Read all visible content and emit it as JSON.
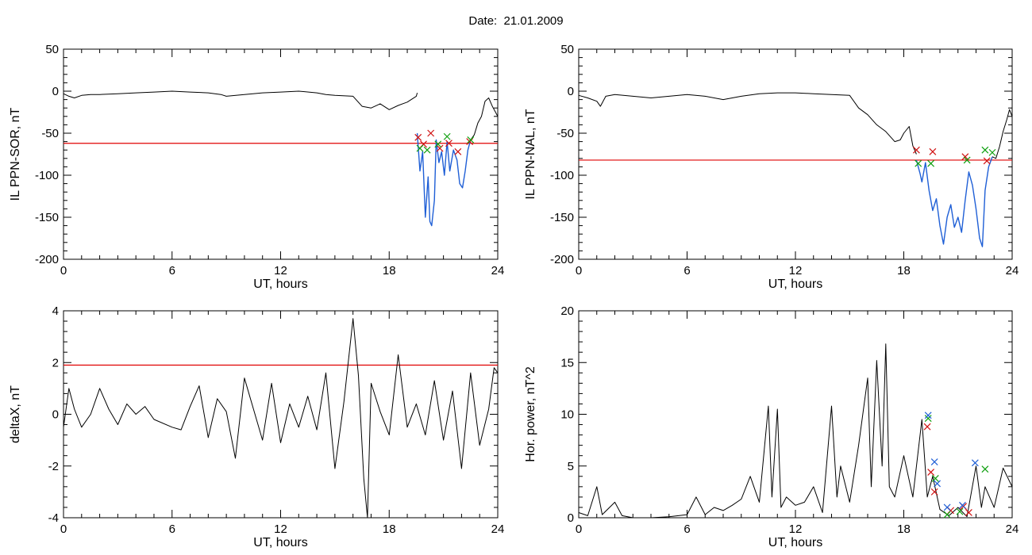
{
  "header": {
    "title": "Date:  21.01.2009"
  },
  "chart_data": [
    {
      "type": "line",
      "xlabel": "UT, hours",
      "ylabel": "IL PPN-SOR, nT",
      "xlim": [
        0,
        24
      ],
      "ylim": [
        -200,
        50
      ],
      "xticks": [
        0,
        6,
        12,
        18,
        24
      ],
      "yticks": [
        -200,
        -150,
        -100,
        -50,
        0,
        50
      ],
      "threshold": -62,
      "colors": {
        "trace": "#000000",
        "highlight": "#1f5fd6",
        "threshold": "#e00000",
        "marker_a": "#d01010",
        "marker_b": "#10a010"
      },
      "series": [
        {
          "values": [
            [
              0,
              -3
            ],
            [
              0.3,
              -6
            ],
            [
              0.6,
              -8
            ],
            [
              1,
              -5
            ],
            [
              1.5,
              -4
            ],
            [
              2,
              -4
            ],
            [
              3,
              -3
            ],
            [
              4,
              -2
            ],
            [
              5,
              -1
            ],
            [
              6,
              0
            ],
            [
              7,
              -1
            ],
            [
              8,
              -2
            ],
            [
              8.7,
              -4
            ],
            [
              9,
              -6
            ],
            [
              10,
              -4
            ],
            [
              11,
              -2
            ],
            [
              12,
              -1
            ],
            [
              13,
              0
            ],
            [
              14,
              -2
            ],
            [
              14.5,
              -4
            ],
            [
              15,
              -5
            ],
            [
              16,
              -6
            ],
            [
              16.5,
              -18
            ],
            [
              17,
              -20
            ],
            [
              17.5,
              -15
            ],
            [
              18,
              -22
            ],
            [
              18.5,
              -17
            ],
            [
              19,
              -13
            ],
            [
              19.5,
              -6
            ],
            [
              19.55,
              -2
            ]
          ]
        },
        {
          "values": [
            [
              19.55,
              -50
            ],
            [
              19.7,
              -95
            ],
            [
              19.85,
              -72
            ],
            [
              20,
              -150
            ],
            [
              20.15,
              -102
            ],
            [
              20.25,
              -155
            ],
            [
              20.35,
              -160
            ],
            [
              20.5,
              -130
            ],
            [
              20.6,
              -58
            ],
            [
              20.75,
              -85
            ],
            [
              20.9,
              -72
            ],
            [
              21.05,
              -100
            ],
            [
              21.2,
              -60
            ],
            [
              21.35,
              -95
            ],
            [
              21.55,
              -70
            ],
            [
              21.75,
              -82
            ],
            [
              21.9,
              -110
            ],
            [
              22.05,
              -115
            ],
            [
              22.2,
              -95
            ],
            [
              22.35,
              -70
            ],
            [
              22.5,
              -58
            ]
          ]
        },
        {
          "values": [
            [
              22.5,
              -58
            ],
            [
              22.7,
              -52
            ],
            [
              22.9,
              -38
            ],
            [
              23.1,
              -30
            ],
            [
              23.3,
              -12
            ],
            [
              23.5,
              -8
            ],
            [
              23.7,
              -18
            ],
            [
              23.85,
              -24
            ],
            [
              24,
              -30
            ]
          ]
        }
      ],
      "markers_a": [
        [
          19.6,
          -55
        ],
        [
          19.9,
          -63
        ],
        [
          20.3,
          -50
        ],
        [
          20.8,
          -68
        ],
        [
          21.3,
          -62
        ],
        [
          21.8,
          -72
        ],
        [
          22.45,
          -60
        ]
      ],
      "markers_b": [
        [
          19.7,
          -68
        ],
        [
          20.1,
          -70
        ],
        [
          20.7,
          -63
        ],
        [
          21.2,
          -54
        ],
        [
          22.5,
          -58
        ]
      ]
    },
    {
      "type": "line",
      "xlabel": "UT, hours",
      "ylabel": "IL PPN-NAL, nT",
      "xlim": [
        0,
        24
      ],
      "ylim": [
        -200,
        50
      ],
      "xticks": [
        0,
        6,
        12,
        18,
        24
      ],
      "yticks": [
        -200,
        -150,
        -100,
        -50,
        0,
        50
      ],
      "threshold": -82,
      "colors": {
        "trace": "#000000",
        "highlight": "#1f5fd6",
        "threshold": "#e00000",
        "marker_a": "#d01010",
        "marker_b": "#10a010"
      },
      "series": [
        {
          "values": [
            [
              0,
              -5
            ],
            [
              0.5,
              -8
            ],
            [
              1,
              -12
            ],
            [
              1.2,
              -18
            ],
            [
              1.5,
              -6
            ],
            [
              2,
              -4
            ],
            [
              3,
              -6
            ],
            [
              4,
              -8
            ],
            [
              5,
              -6
            ],
            [
              6,
              -4
            ],
            [
              7,
              -6
            ],
            [
              8,
              -10
            ],
            [
              9,
              -6
            ],
            [
              10,
              -3
            ],
            [
              11,
              -2
            ],
            [
              12,
              -2
            ],
            [
              13,
              -3
            ],
            [
              14,
              -4
            ],
            [
              15,
              -5
            ],
            [
              15.5,
              -20
            ],
            [
              16,
              -28
            ],
            [
              16.5,
              -40
            ],
            [
              17,
              -48
            ],
            [
              17.5,
              -60
            ],
            [
              17.8,
              -58
            ],
            [
              18,
              -50
            ],
            [
              18.3,
              -42
            ],
            [
              18.5,
              -65
            ],
            [
              18.7,
              -75
            ]
          ]
        },
        {
          "values": [
            [
              18.7,
              -82
            ],
            [
              18.9,
              -98
            ],
            [
              19,
              -108
            ],
            [
              19.2,
              -85
            ],
            [
              19.4,
              -118
            ],
            [
              19.6,
              -142
            ],
            [
              19.8,
              -128
            ],
            [
              20,
              -160
            ],
            [
              20.2,
              -182
            ],
            [
              20.4,
              -150
            ],
            [
              20.6,
              -135
            ],
            [
              20.8,
              -162
            ],
            [
              21,
              -150
            ],
            [
              21.2,
              -168
            ],
            [
              21.4,
              -130
            ],
            [
              21.6,
              -96
            ],
            [
              21.8,
              -112
            ],
            [
              22,
              -140
            ],
            [
              22.2,
              -175
            ],
            [
              22.35,
              -185
            ],
            [
              22.5,
              -118
            ],
            [
              22.7,
              -90
            ],
            [
              22.9,
              -78
            ]
          ]
        },
        {
          "values": [
            [
              22.9,
              -78
            ],
            [
              23.1,
              -80
            ],
            [
              23.3,
              -66
            ],
            [
              23.5,
              -48
            ],
            [
              23.7,
              -34
            ],
            [
              23.85,
              -22
            ],
            [
              24,
              -30
            ]
          ]
        }
      ],
      "markers_a": [
        [
          18.7,
          -70
        ],
        [
          19.6,
          -72
        ],
        [
          21.4,
          -78
        ],
        [
          22.6,
          -83
        ]
      ],
      "markers_b": [
        [
          18.8,
          -86
        ],
        [
          19.5,
          -86
        ],
        [
          21.5,
          -82
        ],
        [
          22.5,
          -70
        ],
        [
          22.9,
          -73
        ]
      ]
    },
    {
      "type": "line",
      "xlabel": "UT, hours",
      "ylabel": "deltaX, nT",
      "xlim": [
        0,
        24
      ],
      "ylim": [
        -4,
        4
      ],
      "xticks": [
        0,
        6,
        12,
        18,
        24
      ],
      "yticks": [
        -4,
        -2,
        0,
        2,
        4
      ],
      "threshold": 1.9,
      "colors": {
        "trace": "#000000",
        "threshold": "#e00000"
      },
      "series": [
        {
          "values": [
            [
              0,
              -0.5
            ],
            [
              0.3,
              1
            ],
            [
              0.6,
              0.2
            ],
            [
              1,
              -0.5
            ],
            [
              1.5,
              0
            ],
            [
              2,
              1
            ],
            [
              2.5,
              0.2
            ],
            [
              3,
              -0.4
            ],
            [
              3.5,
              0.4
            ],
            [
              4,
              0
            ],
            [
              4.5,
              0.3
            ],
            [
              5,
              -0.2
            ],
            [
              6,
              -0.5
            ],
            [
              6.5,
              -0.6
            ],
            [
              7,
              0.3
            ],
            [
              7.5,
              1.1
            ],
            [
              8,
              -0.9
            ],
            [
              8.5,
              0.6
            ],
            [
              9,
              0.1
            ],
            [
              9.5,
              -1.7
            ],
            [
              10,
              1.4
            ],
            [
              10.5,
              0.2
            ],
            [
              11,
              -1
            ],
            [
              11.5,
              1.2
            ],
            [
              12,
              -1.1
            ],
            [
              12.5,
              0.4
            ],
            [
              13,
              -0.5
            ],
            [
              13.5,
              0.7
            ],
            [
              14,
              -0.6
            ],
            [
              14.5,
              1.6
            ],
            [
              15,
              -2.1
            ],
            [
              15.5,
              0.5
            ],
            [
              16,
              3.7
            ],
            [
              16.3,
              1.5
            ],
            [
              16.6,
              -2.5
            ],
            [
              16.8,
              -4
            ],
            [
              17,
              1.2
            ],
            [
              17.5,
              0.1
            ],
            [
              18,
              -0.8
            ],
            [
              18.5,
              2.3
            ],
            [
              19,
              -0.5
            ],
            [
              19.5,
              0.4
            ],
            [
              20,
              -0.8
            ],
            [
              20.5,
              1.3
            ],
            [
              21,
              -1
            ],
            [
              21.5,
              0.9
            ],
            [
              22,
              -2.1
            ],
            [
              22.5,
              1.6
            ],
            [
              23,
              -1.2
            ],
            [
              23.5,
              0.2
            ],
            [
              23.8,
              1.8
            ],
            [
              24,
              1.6
            ]
          ]
        }
      ]
    },
    {
      "type": "line",
      "xlabel": "UT, hours",
      "ylabel": "Hor. power, nT^2",
      "xlim": [
        0,
        24
      ],
      "ylim": [
        0,
        20
      ],
      "xticks": [
        0,
        6,
        12,
        18,
        24
      ],
      "yticks": [
        0,
        5,
        10,
        15,
        20
      ],
      "colors": {
        "trace": "#000000",
        "marker_a": "#d01010",
        "marker_b": "#10a010",
        "marker_c": "#1f5fd6"
      },
      "series": [
        {
          "values": [
            [
              0,
              0.5
            ],
            [
              0.5,
              0.2
            ],
            [
              1,
              3
            ],
            [
              1.3,
              0.3
            ],
            [
              2,
              1.5
            ],
            [
              2.4,
              0.2
            ],
            [
              3,
              0
            ],
            [
              4,
              0
            ],
            [
              5,
              0.1
            ],
            [
              6,
              0.3
            ],
            [
              6.5,
              2
            ],
            [
              7,
              0.3
            ],
            [
              7.5,
              1
            ],
            [
              8,
              0.7
            ],
            [
              8.5,
              1.2
            ],
            [
              9,
              1.8
            ],
            [
              9.5,
              4
            ],
            [
              10,
              1.5
            ],
            [
              10.5,
              10.8
            ],
            [
              10.7,
              2
            ],
            [
              11,
              10.5
            ],
            [
              11.2,
              1
            ],
            [
              11.5,
              2
            ],
            [
              12,
              1.2
            ],
            [
              12.5,
              1.5
            ],
            [
              13,
              3
            ],
            [
              13.5,
              0.5
            ],
            [
              14,
              10.8
            ],
            [
              14.3,
              2
            ],
            [
              14.5,
              5
            ],
            [
              15,
              1.5
            ],
            [
              15.5,
              7
            ],
            [
              16,
              13.5
            ],
            [
              16.2,
              3
            ],
            [
              16.5,
              15.2
            ],
            [
              16.8,
              5
            ],
            [
              17,
              16.8
            ],
            [
              17.2,
              3
            ],
            [
              17.5,
              2
            ],
            [
              18,
              6
            ],
            [
              18.5,
              2
            ],
            [
              19,
              9.5
            ],
            [
              19.3,
              2
            ],
            [
              19.6,
              4
            ],
            [
              20,
              0.8
            ],
            [
              20.5,
              0.2
            ],
            [
              21,
              1
            ],
            [
              21.5,
              0.1
            ],
            [
              22,
              5
            ],
            [
              22.3,
              1
            ],
            [
              22.5,
              3
            ],
            [
              23,
              1
            ],
            [
              23.5,
              4.8
            ],
            [
              24,
              3
            ]
          ]
        }
      ],
      "markers_a": [
        [
          19.3,
          8.8
        ],
        [
          19.5,
          4.4
        ],
        [
          19.7,
          2.5
        ],
        [
          20.6,
          0.7
        ],
        [
          21.3,
          1.1
        ],
        [
          21.6,
          0.5
        ]
      ],
      "markers_b": [
        [
          19.35,
          9.6
        ],
        [
          19.75,
          3.8
        ],
        [
          20.4,
          0.3
        ],
        [
          21.1,
          0.6
        ],
        [
          22.5,
          4.7
        ]
      ],
      "markers_c": [
        [
          19.35,
          9.9
        ],
        [
          19.7,
          5.4
        ],
        [
          19.85,
          3.3
        ],
        [
          20.4,
          1
        ],
        [
          21.25,
          1.2
        ],
        [
          21.95,
          5.3
        ]
      ]
    }
  ]
}
